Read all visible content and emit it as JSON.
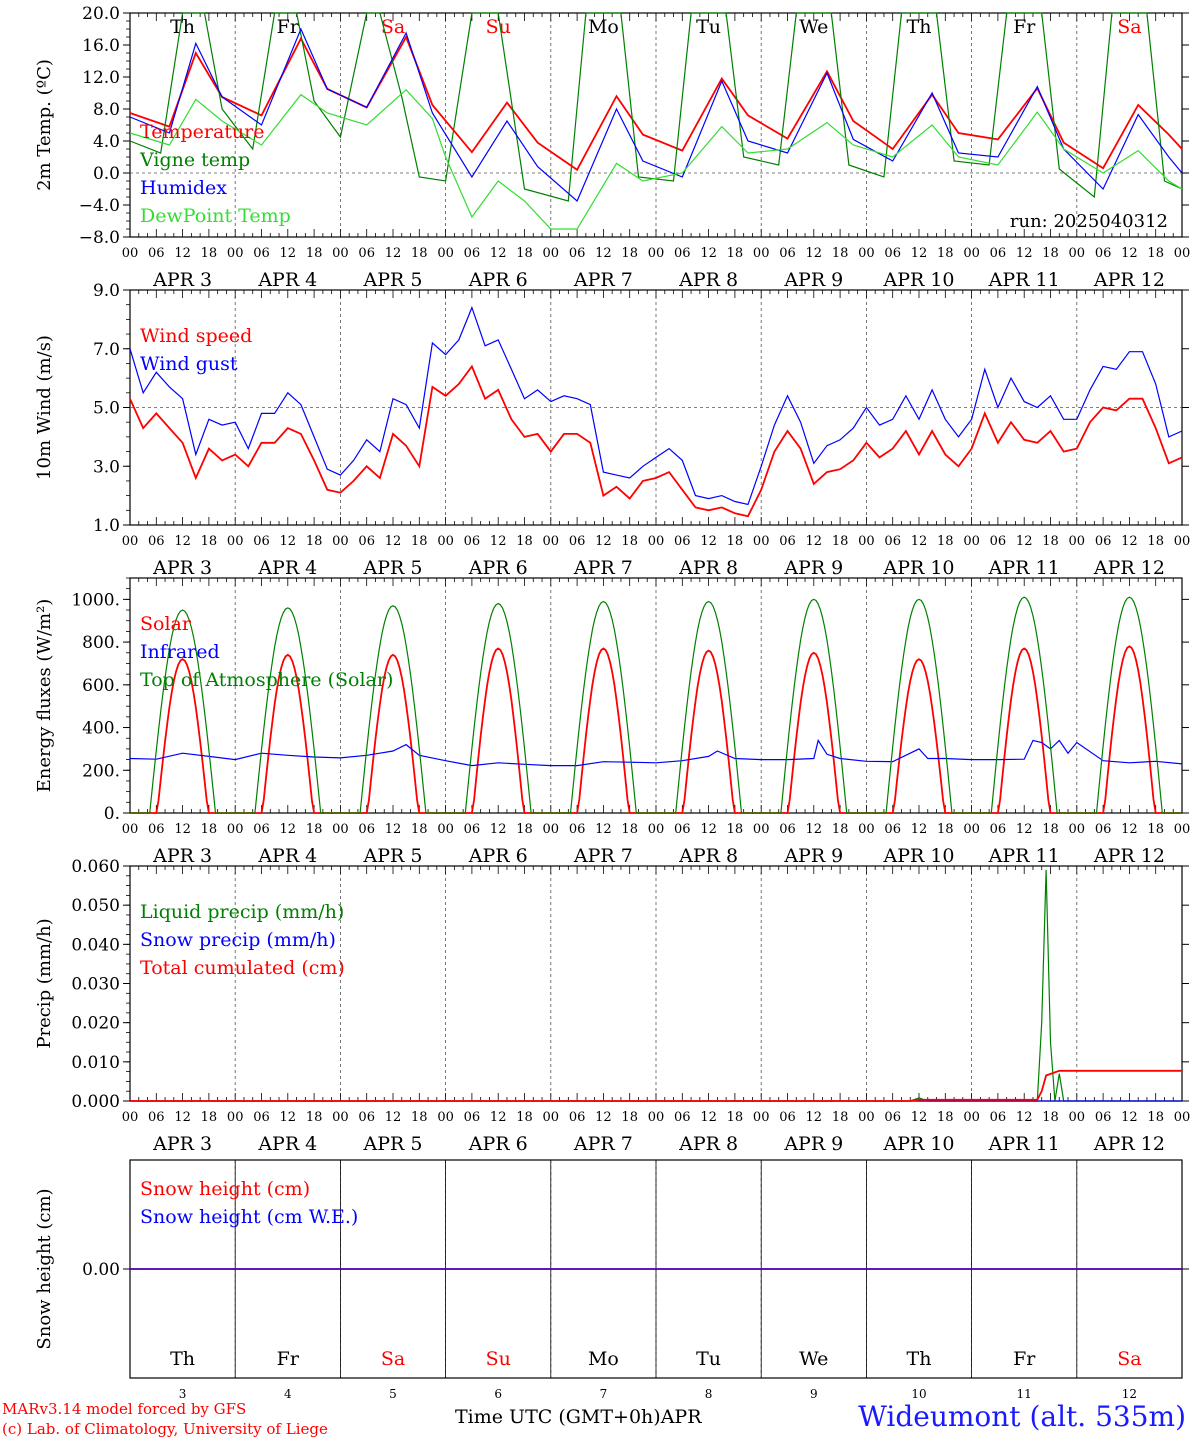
{
  "colors": {
    "red": "#ff0000",
    "blue": "#0000ff",
    "darkgreen": "#008000",
    "lime": "#33dd33",
    "black": "#000000"
  },
  "days": [
    "Th",
    "Fr",
    "Sa",
    "Su",
    "Mo",
    "Tu",
    "We",
    "Th",
    "Fr",
    "Sa"
  ],
  "weekend_days": [
    "Sa",
    "Su"
  ],
  "dates": [
    "APR  3",
    "APR  4",
    "APR  5",
    "APR  6",
    "APR  7",
    "APR  8",
    "APR  9",
    "APR 10",
    "APR 11",
    "APR 12"
  ],
  "date_numbers": [
    "3",
    "4",
    "5",
    "6",
    "7",
    "8",
    "9",
    "10",
    "11",
    "12"
  ],
  "hour_ticks": [
    "00",
    "06",
    "12",
    "18"
  ],
  "footer": {
    "credit_line1": "MARv3.14 model forced by GFS",
    "credit_line2": "(c) Lab. of Climatology, University of Liege",
    "time_axis_label": "Time UTC (GMT+0h)",
    "time_axis_month": "APR",
    "station": "Wideumont (alt. 535m)"
  },
  "chart_data": [
    {
      "type": "line",
      "ylabel": "2m Temp. (ºC)",
      "ylim": [
        -8,
        20
      ],
      "yticks": [
        "20.0",
        "16.0",
        "12.0",
        "8.0",
        "4.0",
        "0.0",
        "−4.0",
        "−8.0"
      ],
      "ytick_values": [
        20,
        16,
        12,
        8,
        4,
        0,
        -4,
        -8
      ],
      "annotation": "run: 2025040312",
      "x_unit": "hours from APR 3 00 UTC",
      "xlim": [
        0,
        240
      ],
      "grid": "vertical dashed at 00 UTC, horizontal dashed at 0",
      "reference_line": 0,
      "legend_placement": "left",
      "series": [
        {
          "name": "Temperature",
          "color": "red",
          "x": [
            0,
            9,
            15,
            21,
            30,
            39,
            45,
            54,
            63,
            69,
            78,
            86,
            93,
            102,
            111,
            117,
            126,
            135,
            141,
            150,
            159,
            165,
            174,
            183,
            189,
            198,
            207,
            213,
            222,
            230,
            237,
            240
          ],
          "values": [
            7.5,
            5.8,
            15.0,
            9.5,
            7.2,
            16.8,
            10.5,
            8.2,
            17.0,
            8.5,
            2.6,
            8.8,
            3.8,
            0.4,
            9.6,
            4.8,
            2.8,
            11.8,
            7.2,
            4.3,
            12.7,
            6.5,
            3.0,
            9.8,
            5.0,
            4.2,
            10.6,
            3.8,
            0.6,
            8.5,
            4.8,
            3.0
          ]
        },
        {
          "name": "Vigne temp",
          "color": "darkgreen",
          "x": [
            0,
            7,
            12,
            17,
            21,
            28,
            33,
            38,
            42,
            48,
            54,
            57,
            62,
            66,
            72,
            78,
            84,
            90,
            100,
            104,
            108,
            112,
            116,
            124,
            128,
            132,
            136,
            140,
            148,
            152,
            156,
            160,
            164,
            172,
            176,
            180,
            184,
            188,
            196,
            200,
            204,
            208,
            212,
            220,
            224,
            228,
            232,
            236,
            240
          ],
          "values": [
            4.0,
            2.5,
            20.0,
            20.0,
            8.0,
            3.0,
            20.0,
            20.0,
            9.0,
            4.5,
            20.0,
            20.0,
            9.5,
            -0.5,
            -1.0,
            20.0,
            20.0,
            -2.0,
            -3.5,
            20.0,
            20.0,
            20.0,
            -0.5,
            -1.0,
            20.0,
            20.0,
            20.0,
            2.0,
            1.0,
            20.0,
            20.0,
            20.0,
            1.0,
            -0.5,
            20.0,
            20.0,
            20.0,
            1.5,
            1.0,
            20.0,
            20.0,
            20.0,
            0.5,
            -3.0,
            20.0,
            20.0,
            20.0,
            -1.0,
            -2.0
          ]
        },
        {
          "name": "Humidex",
          "color": "blue",
          "x": [
            0,
            9,
            15,
            21,
            30,
            39,
            45,
            54,
            63,
            69,
            78,
            86,
            93,
            102,
            111,
            117,
            126,
            135,
            141,
            150,
            159,
            165,
            174,
            183,
            189,
            198,
            207,
            213,
            222,
            230,
            237,
            240
          ],
          "values": [
            7.0,
            5.0,
            16.2,
            9.5,
            6.0,
            18.0,
            10.5,
            8.2,
            17.5,
            7.5,
            -0.5,
            6.5,
            0.8,
            -3.5,
            8.0,
            1.5,
            -0.5,
            11.5,
            4.0,
            2.5,
            12.5,
            4.2,
            1.5,
            10.0,
            2.5,
            2.0,
            10.8,
            3.0,
            -2.0,
            7.3,
            2.0,
            0.0
          ]
        },
        {
          "name": "DewPoint Temp",
          "color": "lime",
          "x": [
            0,
            9,
            15,
            21,
            30,
            39,
            45,
            54,
            63,
            69,
            72,
            78,
            84,
            90,
            96,
            102,
            111,
            117,
            126,
            135,
            141,
            150,
            159,
            165,
            174,
            183,
            189,
            198,
            207,
            213,
            222,
            230,
            237,
            240
          ],
          "values": [
            5.0,
            3.5,
            9.2,
            6.5,
            3.5,
            9.8,
            7.5,
            6.0,
            10.4,
            6.8,
            2.0,
            -5.5,
            -1.0,
            -3.5,
            -7.0,
            -7.0,
            1.2,
            -1.0,
            0.0,
            5.8,
            2.5,
            3.0,
            6.3,
            3.5,
            2.0,
            6.0,
            2.0,
            1.0,
            7.6,
            3.0,
            0.0,
            2.8,
            -1.0,
            -2.0
          ]
        }
      ]
    },
    {
      "type": "line",
      "ylabel": "10m Wind (m/s)",
      "ylim": [
        1,
        9
      ],
      "yticks": [
        "9.0",
        "7.0",
        "5.0",
        "3.0",
        "1.0"
      ],
      "ytick_values": [
        9,
        7,
        5,
        3,
        1
      ],
      "x_unit": "hours from APR 3 00 UTC",
      "xlim": [
        0,
        240
      ],
      "reference_line": 5,
      "legend_placement": "left",
      "series": [
        {
          "name": "Wind speed",
          "color": "red",
          "x": [
            0,
            3,
            6,
            9,
            12,
            15,
            18,
            21,
            24,
            27,
            30,
            33,
            36,
            39,
            42,
            45,
            48,
            51,
            54,
            57,
            60,
            63,
            66,
            69,
            72,
            75,
            78,
            81,
            84,
            87,
            90,
            93,
            96,
            99,
            102,
            105,
            108,
            111,
            114,
            117,
            120,
            123,
            126,
            129,
            132,
            135,
            138,
            141,
            144,
            147,
            150,
            153,
            156,
            159,
            162,
            165,
            168,
            171,
            174,
            177,
            180,
            183,
            186,
            189,
            192,
            195,
            198,
            201,
            204,
            207,
            210,
            213,
            216,
            219,
            222,
            225,
            228,
            231,
            234,
            237,
            240
          ],
          "values": [
            5.3,
            4.3,
            4.8,
            4.3,
            3.8,
            2.6,
            3.6,
            3.2,
            3.4,
            3.0,
            3.8,
            3.8,
            4.3,
            4.1,
            3.2,
            2.2,
            2.1,
            2.5,
            3.0,
            2.6,
            4.1,
            3.7,
            3.0,
            5.7,
            5.4,
            5.8,
            6.4,
            5.3,
            5.6,
            4.6,
            4.0,
            4.1,
            3.5,
            4.1,
            4.1,
            3.8,
            2.0,
            2.3,
            1.9,
            2.5,
            2.6,
            2.8,
            2.2,
            1.6,
            1.5,
            1.6,
            1.4,
            1.3,
            2.2,
            3.5,
            4.2,
            3.6,
            2.4,
            2.8,
            2.9,
            3.2,
            3.8,
            3.3,
            3.6,
            4.2,
            3.4,
            4.2,
            3.4,
            3.0,
            3.6,
            4.8,
            3.8,
            4.5,
            3.9,
            3.8,
            4.2,
            3.5,
            3.6,
            4.5,
            5.0,
            4.9,
            5.3,
            5.3,
            4.3,
            3.1,
            3.3
          ]
        },
        {
          "name": "Wind gust",
          "color": "blue",
          "x": [
            0,
            3,
            6,
            9,
            12,
            15,
            18,
            21,
            24,
            27,
            30,
            33,
            36,
            39,
            42,
            45,
            48,
            51,
            54,
            57,
            60,
            63,
            66,
            69,
            72,
            75,
            78,
            81,
            84,
            87,
            90,
            93,
            96,
            99,
            102,
            105,
            108,
            111,
            114,
            117,
            120,
            123,
            126,
            129,
            132,
            135,
            138,
            141,
            144,
            147,
            150,
            153,
            156,
            159,
            162,
            165,
            168,
            171,
            174,
            177,
            180,
            183,
            186,
            189,
            192,
            195,
            198,
            201,
            204,
            207,
            210,
            213,
            216,
            219,
            222,
            225,
            228,
            231,
            234,
            237,
            240
          ],
          "values": [
            7.0,
            5.5,
            6.2,
            5.7,
            5.3,
            3.4,
            4.6,
            4.4,
            4.5,
            3.6,
            4.8,
            4.8,
            5.5,
            5.1,
            4.0,
            2.9,
            2.7,
            3.2,
            3.9,
            3.5,
            5.3,
            5.1,
            4.3,
            7.2,
            6.8,
            7.3,
            8.4,
            7.1,
            7.3,
            6.3,
            5.3,
            5.6,
            5.2,
            5.4,
            5.3,
            5.1,
            2.8,
            2.7,
            2.6,
            3.0,
            3.3,
            3.6,
            3.2,
            2.0,
            1.9,
            2.0,
            1.8,
            1.7,
            3.0,
            4.4,
            5.4,
            4.5,
            3.1,
            3.7,
            3.9,
            4.3,
            5.0,
            4.4,
            4.6,
            5.4,
            4.6,
            5.6,
            4.6,
            4.0,
            4.6,
            6.3,
            5.0,
            6.0,
            5.2,
            5.0,
            5.4,
            4.6,
            4.6,
            5.6,
            6.4,
            6.3,
            6.9,
            6.9,
            5.8,
            4.0,
            4.2
          ]
        }
      ]
    },
    {
      "type": "line",
      "ylabel": "Energy fluxes (W/m²)",
      "ylim": [
        0,
        1100
      ],
      "yticks": [
        "1000.",
        "800.",
        "600.",
        "400.",
        "200.",
        "0."
      ],
      "ytick_values": [
        1000,
        800,
        600,
        400,
        200,
        0
      ],
      "x_unit": "hours from APR 3 00 UTC",
      "xlim": [
        0,
        240
      ],
      "legend_placement": "left",
      "series": [
        {
          "name": "Solar",
          "color": "red",
          "peaks": [
            720,
            740,
            740,
            770,
            770,
            760,
            750,
            720,
            770,
            780
          ]
        },
        {
          "name": "Infrared",
          "color": "blue",
          "x": [
            0,
            6,
            12,
            18,
            24,
            30,
            36,
            42,
            48,
            54,
            60,
            63,
            66,
            72,
            78,
            84,
            90,
            96,
            102,
            108,
            114,
            120,
            126,
            132,
            134,
            138,
            144,
            150,
            156,
            157,
            159,
            162,
            168,
            174,
            180,
            182,
            186,
            192,
            198,
            204,
            206,
            208,
            210,
            212,
            214,
            216,
            222,
            228,
            234,
            240
          ],
          "values": [
            255,
            252,
            280,
            265,
            250,
            280,
            270,
            262,
            258,
            270,
            290,
            320,
            270,
            245,
            222,
            235,
            228,
            222,
            222,
            240,
            238,
            235,
            245,
            265,
            290,
            255,
            250,
            250,
            255,
            340,
            275,
            255,
            242,
            240,
            300,
            255,
            255,
            250,
            250,
            252,
            340,
            330,
            300,
            340,
            280,
            330,
            245,
            235,
            242,
            230
          ]
        },
        {
          "name": "Top of Atmosphere (Solar)",
          "color": "darkgreen",
          "peaks": [
            950,
            960,
            970,
            980,
            990,
            990,
            1000,
            1000,
            1010,
            1010
          ]
        }
      ]
    },
    {
      "type": "line",
      "ylabel": "Precip (mm/h)",
      "ylim": [
        0,
        0.06
      ],
      "yticks": [
        "0.060",
        "0.050",
        "0.040",
        "0.030",
        "0.020",
        "0.010",
        "0.000"
      ],
      "ytick_values": [
        0.06,
        0.05,
        0.04,
        0.03,
        0.02,
        0.01,
        0.0
      ],
      "x_unit": "hours from APR 3 00 UTC",
      "xlim": [
        0,
        240
      ],
      "legend_placement": "left",
      "series": [
        {
          "name": "Liquid precip (mm/h)",
          "color": "darkgreen",
          "x": [
            0,
            178,
            180,
            182,
            207,
            208,
            209,
            210,
            211,
            212,
            213,
            214,
            240
          ],
          "values": [
            0,
            0,
            0.0008,
            0,
            0,
            0.02,
            0.059,
            0.015,
            0.0,
            0.007,
            0.0,
            0,
            0
          ]
        },
        {
          "name": "Snow precip (mm/h)",
          "color": "blue",
          "x": [
            0,
            240
          ],
          "values": [
            0,
            0
          ]
        },
        {
          "name": "Total cumulated (cm)",
          "color": "red",
          "x": [
            0,
            178,
            180,
            207,
            208,
            209,
            212,
            240
          ],
          "values": [
            0,
            0,
            0.0003,
            0.0003,
            0.0025,
            0.0065,
            0.0077,
            0.0077
          ]
        }
      ]
    },
    {
      "type": "line",
      "ylabel": "Snow height (cm)",
      "ylim": [
        -1,
        1
      ],
      "yticks": [
        "0.00"
      ],
      "ytick_values": [
        0
      ],
      "x_unit": "hours from APR 3 00 UTC",
      "xlim": [
        0,
        240
      ],
      "legend_placement": "left",
      "series": [
        {
          "name": "Snow height (cm)",
          "color": "red",
          "x": [
            0,
            240
          ],
          "values": [
            0,
            0
          ]
        },
        {
          "name": "Snow height (cm W.E.)",
          "color": "blue",
          "x": [
            0,
            240
          ],
          "values": [
            0,
            0
          ]
        }
      ]
    }
  ]
}
